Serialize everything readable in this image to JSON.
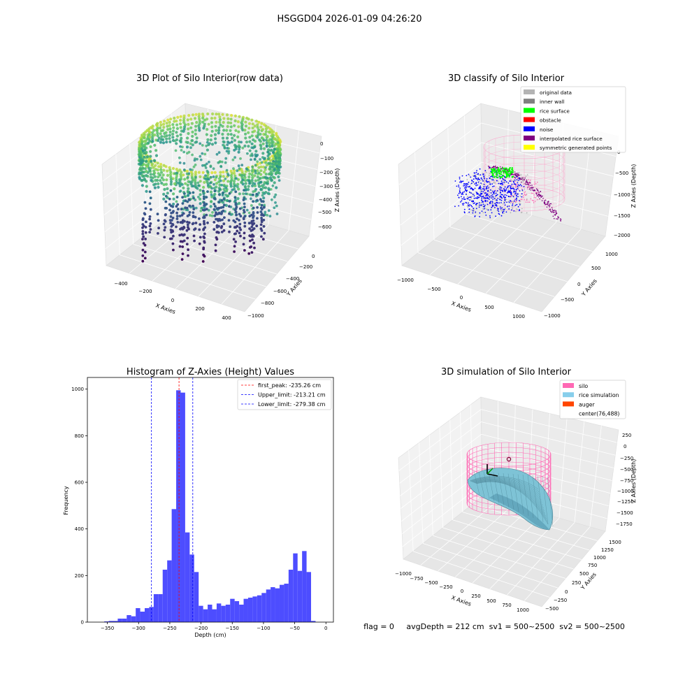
{
  "figure": {
    "suptitle": "HSGGD04 2026-01-09 04:26:20",
    "footer": "flag = 0     avgDepth = 212 cm  sv1 = 500~2500  sv2 = 500~2500"
  },
  "panels": {
    "raw": {
      "title": "3D Plot of Silo Interior(row data)",
      "xlabel": "X Axies",
      "ylabel": "Y Axies",
      "zlabel": "Z Axies (Depth)",
      "xticks": [
        "−400",
        "−200",
        "0",
        "200",
        "400"
      ],
      "yticks": [
        "−1000",
        "−800",
        "−600",
        "−400",
        "−200",
        "0"
      ],
      "zticks": [
        "0",
        "−100",
        "−200",
        "−300",
        "−400",
        "−500",
        "−600"
      ]
    },
    "classify": {
      "title": "3D classify of Silo Interior",
      "xlabel": "X Axies",
      "ylabel": "Y Axies",
      "zlabel": "Z Axies (Depth)",
      "xticks": [
        "−1000",
        "−500",
        "0",
        "500",
        "1000"
      ],
      "yticks": [
        "−1000",
        "−500",
        "0",
        "500",
        "1000"
      ],
      "zticks": [
        "0",
        "−500",
        "−1000",
        "−1500",
        "−2000"
      ],
      "legend": [
        {
          "label": "original data",
          "color": "#b4b4b4"
        },
        {
          "label": "inner wall",
          "color": "#808080"
        },
        {
          "label": "rice surface",
          "color": "#00ff00"
        },
        {
          "label": "obstacle",
          "color": "#ff0000"
        },
        {
          "label": "noise",
          "color": "#0000ff"
        },
        {
          "label": "interpolated rice surface",
          "color": "#800080"
        },
        {
          "label": "symmetric generated points",
          "color": "#ffff00"
        }
      ]
    },
    "simulation": {
      "title": "3D simulation of Silo Interior",
      "xlabel": "X Axies",
      "ylabel": "Y Axies",
      "zlabel": "Z Axies (Depth)",
      "xticks": [
        "−1000",
        "−750",
        "−500",
        "−250",
        "0",
        "250",
        "500",
        "750",
        "1000"
      ],
      "yticks": [
        "−500",
        "−250",
        "0",
        "250",
        "500",
        "750",
        "1000",
        "1250",
        "1500"
      ],
      "zticks": [
        "250",
        "0",
        "−250",
        "−500",
        "−750",
        "−1000",
        "−1250",
        "−1500",
        "−1750"
      ],
      "legend": [
        {
          "label": "silo",
          "color": "#ff69b4"
        },
        {
          "label": "rice simulation",
          "color": "#87ceeb"
        },
        {
          "label": "auger",
          "color": "#ff4500"
        },
        {
          "label": "center(76,488)",
          "color": "#ffffff"
        }
      ]
    }
  },
  "chart_data": [
    {
      "type": "scatter",
      "title": "3D Plot of Silo Interior(row data)",
      "xlabel": "X Axies",
      "ylabel": "Y Axies",
      "zlabel": "Z Axies (Depth)",
      "xlim": [
        -450,
        450
      ],
      "ylim": [
        -1050,
        100
      ],
      "zlim": [
        -700,
        50
      ]
    },
    {
      "type": "scatter",
      "title": "3D classify of Silo Interior",
      "xlabel": "X Axies",
      "ylabel": "Y Axies",
      "zlabel": "Z Axies (Depth)",
      "xlim": [
        -1100,
        1100
      ],
      "ylim": [
        -1100,
        1100
      ],
      "zlim": [
        -2000,
        0
      ],
      "legend_position": "top-right"
    },
    {
      "type": "bar",
      "title": "Histogram of Z-Axies (Height) Values",
      "xlabel": "Depth (cm)",
      "ylabel": "Frequency",
      "xlim": [
        -382,
        12
      ],
      "ylim": [
        0,
        1050
      ],
      "xticks": [
        -350,
        -300,
        -250,
        -200,
        -150,
        -100,
        -50,
        0
      ],
      "xtick_labels": [
        "−350",
        "−300",
        "−250",
        "−200",
        "−150",
        "−100",
        "−50",
        "0"
      ],
      "yticks": [
        0,
        200,
        400,
        600,
        800,
        1000
      ],
      "bin_start": -355,
      "bin_width": 7.2,
      "bar_color": "#4d4dff",
      "values": [
        3,
        5,
        5,
        15,
        15,
        30,
        25,
        60,
        45,
        60,
        65,
        120,
        120,
        225,
        265,
        485,
        995,
        985,
        385,
        290,
        215,
        70,
        55,
        75,
        55,
        80,
        70,
        75,
        100,
        90,
        75,
        100,
        105,
        110,
        115,
        125,
        140,
        150,
        145,
        160,
        165,
        225,
        295,
        220,
        305,
        215,
        5
      ],
      "vlines": [
        {
          "x": -235.26,
          "label": "first_peak: -235.26 cm",
          "color": "#ff0000"
        },
        {
          "x": -213.21,
          "label": "Upper_limit: -213.21 cm",
          "color": "#0000ff"
        },
        {
          "x": -279.38,
          "label": "Lower_limit: -279.38 cm",
          "color": "#0000ff"
        }
      ],
      "legend_position": "top-right"
    },
    {
      "type": "area",
      "title": "3D simulation of Silo Interior",
      "xlabel": "X Axies",
      "ylabel": "Y Axies",
      "zlabel": "Z Axies (Depth)",
      "xlim": [
        -1000,
        1000
      ],
      "ylim": [
        -500,
        1500
      ],
      "zlim": [
        -1750,
        250
      ],
      "legend_position": "top-right"
    }
  ]
}
